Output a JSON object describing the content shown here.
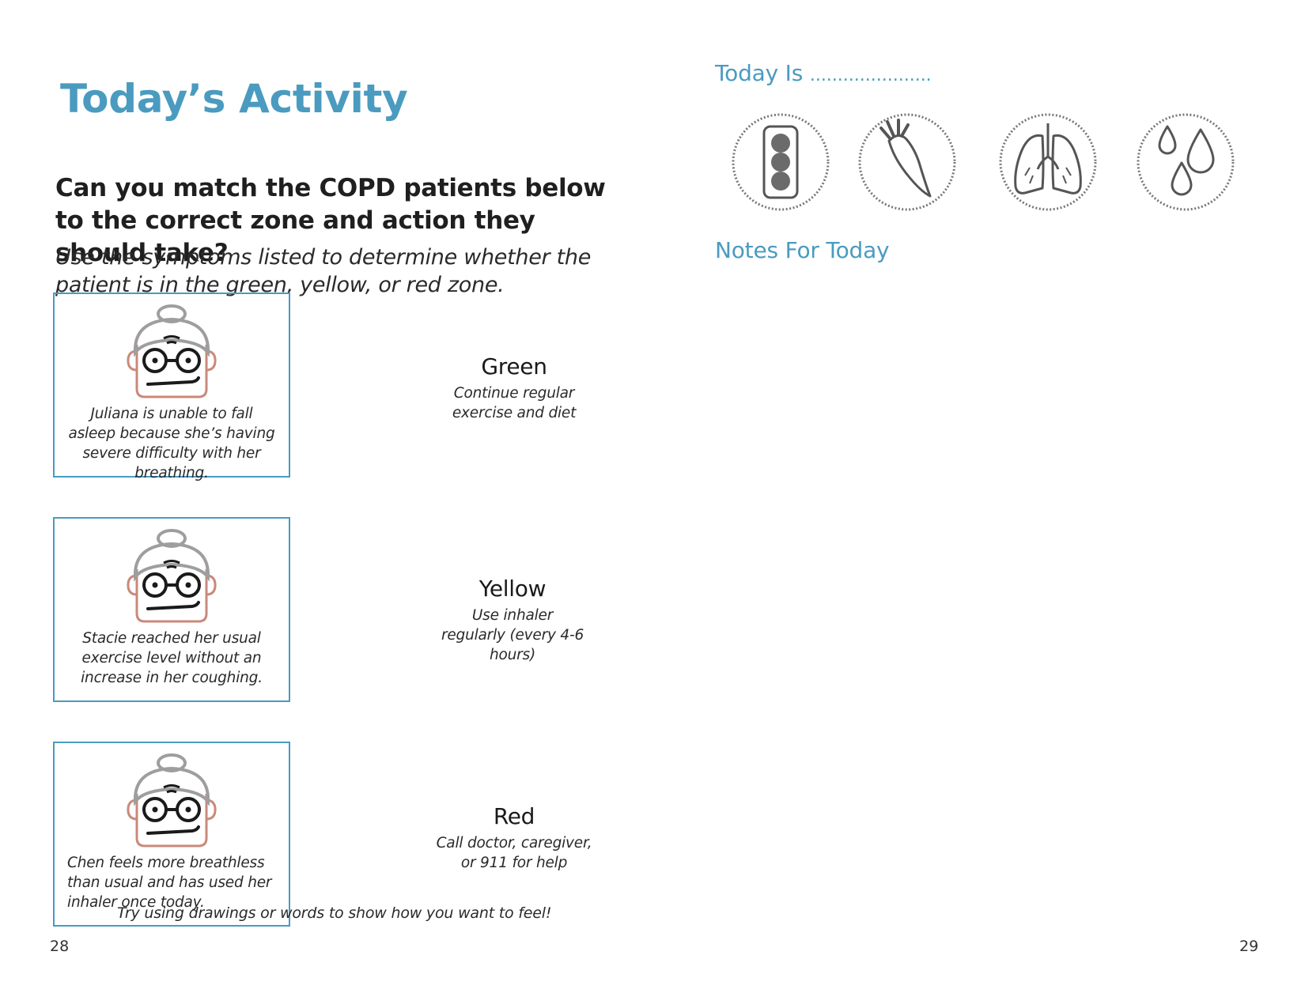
{
  "left_page": {
    "title": "Today’s Activity",
    "question": "Can you match the COPD patients below to the correct zone and action they should take?",
    "instructions": "Use the symptoms listed to determine whether the patient is in the green, yellow, or red zone.",
    "patients": [
      {
        "caption": "Juliana is unable to fall asleep because she’s having severe difficulty with her breathing."
      },
      {
        "caption": "Stacie reached her usual exercise level without an increase in her coughing."
      },
      {
        "caption": "Chen feels more breathless than usual and has used her inhaler once today."
      }
    ],
    "zones": [
      {
        "name": "Green",
        "action": "Continue regular exercise and diet"
      },
      {
        "name": "Yellow",
        "action": "Use inhaler regularly (every 4-6 hours)"
      },
      {
        "name": "Red",
        "action": "Call doctor, caregiver, or 911 for help"
      }
    ],
    "footer_note": "Try using drawings or words to show how you want to feel!",
    "page_number": "28"
  },
  "right_page": {
    "today_label": "Today Is",
    "today_dots": "......................",
    "icons": [
      "traffic-light-icon",
      "carrot-icon",
      "lungs-icon",
      "water-drops-icon"
    ],
    "notes_label": "Notes For Today",
    "page_number": "29"
  },
  "colors": {
    "accent": "#4a9bbf",
    "face_skin_outline": "#c98a7a",
    "hair": "#9e9e9e",
    "icon_gray": "#6b6b6b"
  }
}
